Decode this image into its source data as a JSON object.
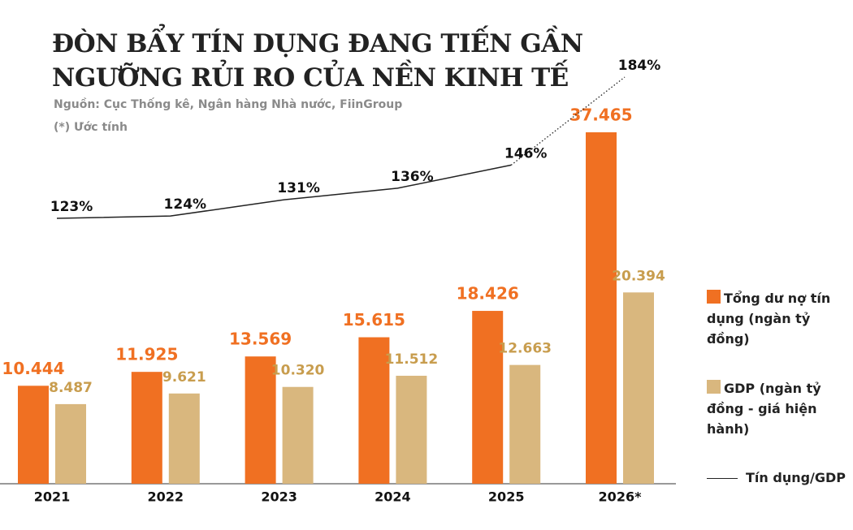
{
  "chart_data": {
    "type": "bar",
    "title": [
      "ĐÒN BẨY TÍN DỤNG ĐANG TIẾN GẦN",
      "NGƯỠNG RỦI RO CỦA NỀN KINH TẾ"
    ],
    "subtitle": "Nguồn: Cục Thống kê, Ngân hàng Nhà nước, FiinGroup",
    "note": "(*) Ước tính",
    "categories": [
      "2021",
      "2022",
      "2023",
      "2024",
      "2025",
      "2026*"
    ],
    "series": [
      {
        "name": "Tổng dư nợ tín dụng (ngàn tỷ đồng)",
        "color": "#f07022",
        "label_color": "#f07022",
        "values": [
          10444,
          11925,
          13569,
          15615,
          18426,
          37465
        ],
        "value_labels": [
          "10.444",
          "11.925",
          "13.569",
          "15.615",
          "18.426",
          "37.465"
        ]
      },
      {
        "name": "GDP (ngàn tỷ đồng - giá hiện hành)",
        "color": "#d9b77e",
        "label_color": "#c89d4e",
        "values": [
          8487,
          9621,
          10320,
          11512,
          12663,
          20394
        ],
        "value_labels": [
          "8.487",
          "9.621",
          "10.320",
          "11.512",
          "12.663",
          "20.394"
        ]
      },
      {
        "name": "Tín dụng/GDP",
        "type": "line",
        "axis": "y2",
        "color": "#222222",
        "values": [
          123,
          124,
          131,
          136,
          146,
          184
        ],
        "value_labels": [
          "123%",
          "124%",
          "131%",
          "136%",
          "146%",
          "184%"
        ]
      }
    ]
  }
}
